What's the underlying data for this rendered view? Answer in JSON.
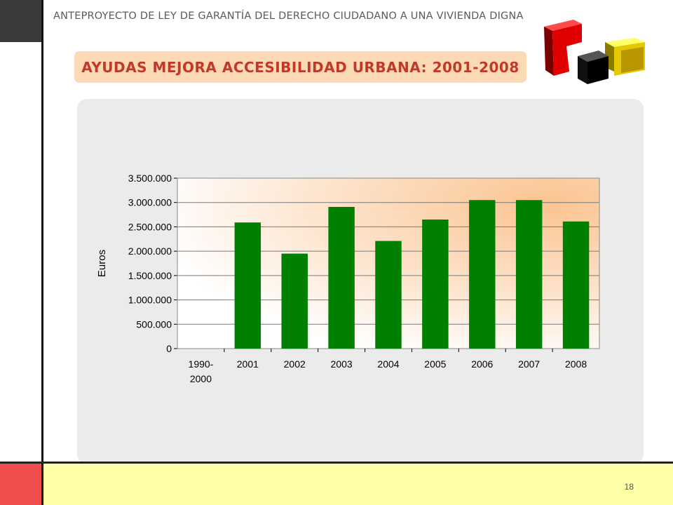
{
  "header": {
    "doc_title": "ANTEPROYECTO  DE LEY DE GARANTÍA DEL DERECHO CIUDADANO A UNA VIVIENDA DIGNA",
    "slide_title": "AYUDAS MEJORA ACCESIBILIDAD URBANA: 2001-2008"
  },
  "footer": {
    "page_number": "18"
  },
  "colors": {
    "bar": "#008000",
    "title": "#c0392b",
    "title_bg": "#fbd9b4",
    "plot_glow": "#fbc491"
  },
  "chart_data": {
    "type": "bar",
    "title": "",
    "xlabel": "",
    "ylabel": "Euros",
    "categories": [
      "1990-\n2000",
      "2001",
      "2002",
      "2003",
      "2004",
      "2005",
      "2006",
      "2007",
      "2008"
    ],
    "values": [
      0,
      2590000,
      1950000,
      2910000,
      2210000,
      2650000,
      3050000,
      3050000,
      2610000
    ],
    "ylim": [
      0,
      3500000
    ],
    "yticks": [
      0,
      500000,
      1000000,
      1500000,
      2000000,
      2500000,
      3000000,
      3500000
    ],
    "ytick_labels": [
      "0",
      "500.000",
      "1.000.000",
      "1.500.000",
      "2.000.000",
      "2.500.000",
      "3.000.000",
      "3.500.000"
    ],
    "grid": true,
    "legend": "none"
  }
}
